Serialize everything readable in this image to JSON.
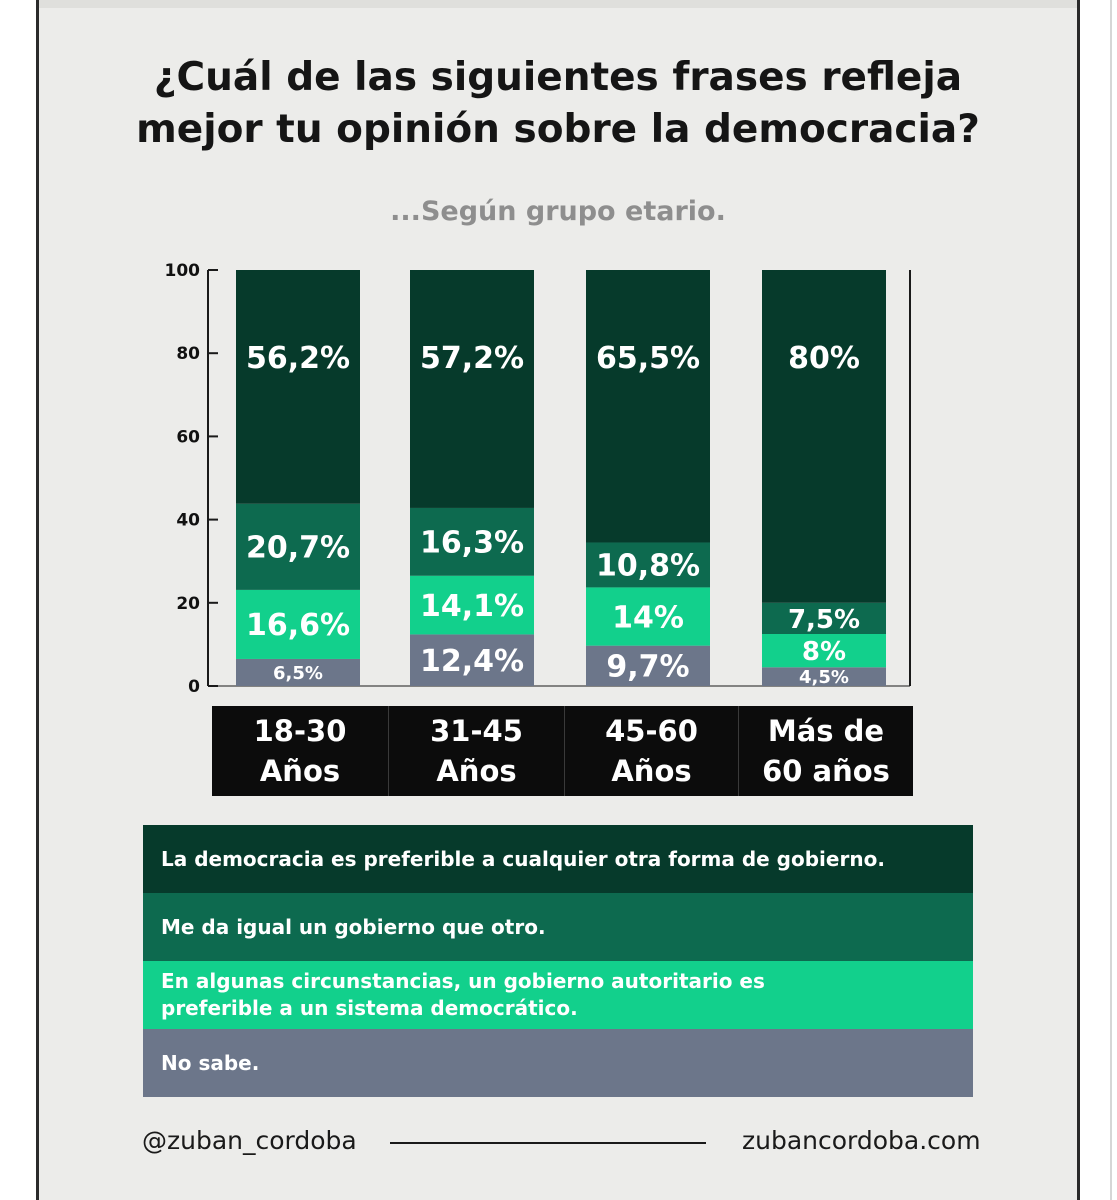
{
  "title_lines": [
    "¿Cuál de las siguientes frases refleja",
    "mejor tu opinión sobre la democracia?"
  ],
  "subtitle": "...Según grupo etario.",
  "colors": {
    "prefer_democracy": "#063a2b",
    "indifferent": "#0d6a4f",
    "authoritarian": "#12d08c",
    "dont_know": "#6c768a"
  },
  "chart_data": {
    "type": "bar",
    "stacked": true,
    "categories": [
      "18-30\nAños",
      "31-45\nAños",
      "45-60\nAños",
      "Más de\n60 años"
    ],
    "series": [
      {
        "name": "No sabe.",
        "values": [
          6.5,
          12.4,
          9.7,
          4.5
        ],
        "labels": [
          "6,5%",
          "12,4%",
          "9,7%",
          "4,5%"
        ]
      },
      {
        "name": "En algunas circunstancias, un gobierno autoritario es\npreferible a un sistema democrático.",
        "values": [
          16.6,
          14.1,
          14.0,
          8.0
        ],
        "labels": [
          "16,6%",
          "14,1%",
          "14%",
          "8%"
        ]
      },
      {
        "name": "Me da igual un gobierno que otro.",
        "values": [
          20.7,
          16.3,
          10.8,
          7.5
        ],
        "labels": [
          "20,7%",
          "16,3%",
          "10,8%",
          "7,5%"
        ]
      },
      {
        "name": "La democracia es preferible a  cualquier otra forma de gobierno.",
        "values": [
          56.2,
          57.2,
          65.5,
          80
        ],
        "labels": [
          "56,2%",
          "57,2%",
          "65,5%",
          "80%"
        ]
      }
    ],
    "ylim": [
      0,
      100
    ],
    "yticks": [
      0,
      20,
      40,
      60,
      80,
      100
    ],
    "legend_order": [
      "La democracia es preferible a  cualquier otra forma de gobierno.",
      "Me da igual un gobierno que otro.",
      "En algunas circunstancias, un gobierno autoritario es\npreferible a un sistema democrático.",
      "No sabe."
    ]
  },
  "footer": {
    "handle": "@zuban_cordoba",
    "website": "zubancordoba.com"
  }
}
